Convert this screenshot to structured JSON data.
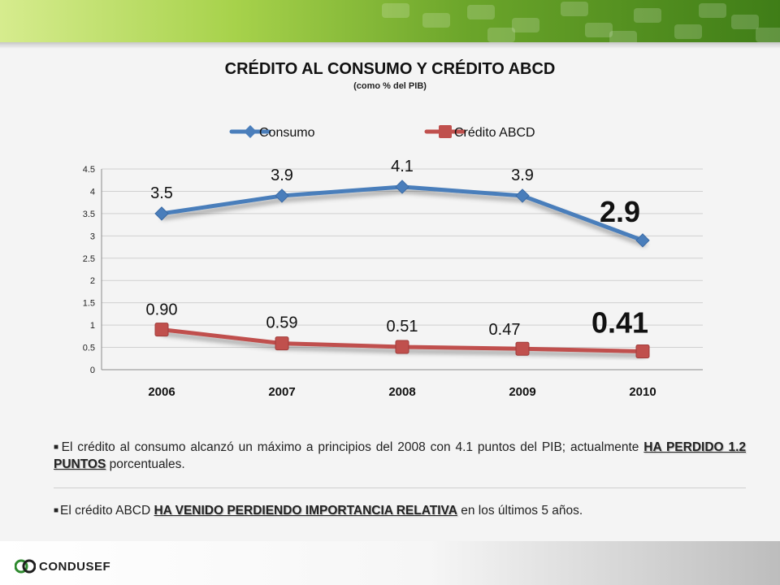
{
  "header": {
    "title": "CRÉDITO AL CONSUMO Y CRÉDITO ABCD",
    "subtitle": "(como % del PIB)"
  },
  "chart_data": {
    "type": "line",
    "categories": [
      "2006",
      "2007",
      "2008",
      "2009",
      "2010"
    ],
    "series": [
      {
        "name": "Consumo",
        "values": [
          3.5,
          3.9,
          4.1,
          3.9,
          2.9
        ],
        "labels": [
          "3.5",
          "3.9",
          "4.1",
          "3.9",
          "2.9"
        ],
        "color": "#4a7ebb",
        "marker": "diamond"
      },
      {
        "name": "Crédito ABCD",
        "values": [
          0.9,
          0.59,
          0.51,
          0.47,
          0.41
        ],
        "labels": [
          "0.90",
          "0.59",
          "0.51",
          "0.47",
          "0.41"
        ],
        "color": "#c0504d",
        "marker": "square"
      }
    ],
    "y_ticks": [
      "0",
      "0.5",
      "1",
      "1.5",
      "2",
      "2.5",
      "3",
      "3.5",
      "4",
      "4.5"
    ],
    "ylim": [
      0,
      4.5
    ],
    "grid": true,
    "legend_position": "top"
  },
  "bullets": [
    {
      "before": "El crédito al consumo alcanzó un máximo a principios del 2008 con 4.1 puntos del PIB; actualmente ",
      "emphasis": "HA PERDIDO 1.2 PUNTOS",
      "after": " porcentuales."
    },
    {
      "before": "El crédito ABCD ",
      "emphasis": "HA VENIDO PERDIENDO IMPORTANCIA RELATIVA",
      "after": " en los últimos 5 años."
    }
  ],
  "footer": {
    "logo_text": "CONDUSEF"
  }
}
